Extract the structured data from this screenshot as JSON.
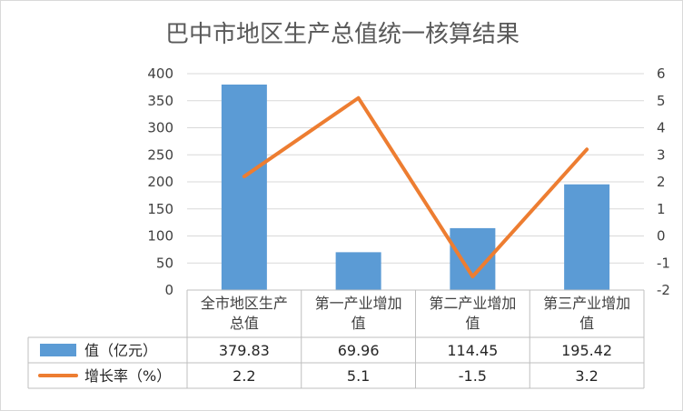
{
  "chart_data": {
    "type": "bar",
    "title": "巴中市地区生产总值统一核算结果",
    "categories": [
      [
        "全市地区生产",
        "总值"
      ],
      [
        "第一产业增加",
        "值"
      ],
      [
        "第二产业增加",
        "值"
      ],
      [
        "第三产业增加",
        "值"
      ]
    ],
    "series": [
      {
        "name": "值（亿元）",
        "type": "bar",
        "axis": "left",
        "color": "#5b9bd5",
        "values": [
          379.83,
          69.96,
          114.45,
          195.42
        ],
        "labels": [
          "379.83",
          "69.96",
          "114.45",
          "195.42"
        ]
      },
      {
        "name": "增长率（%）",
        "type": "line",
        "axis": "right",
        "color": "#ed7d31",
        "values": [
          2.2,
          5.1,
          -1.5,
          3.2
        ],
        "labels": [
          "2.2",
          "5.1",
          "-1.5",
          "3.2"
        ]
      }
    ],
    "y_left": {
      "min": 0,
      "max": 400,
      "step": 50,
      "ticks": [
        "0",
        "50",
        "100",
        "150",
        "200",
        "250",
        "300",
        "350",
        "400"
      ]
    },
    "y_right": {
      "min": -2,
      "max": 6,
      "step": 1,
      "ticks": [
        "-2",
        "-1",
        "0",
        "1",
        "2",
        "3",
        "4",
        "5",
        "6"
      ]
    },
    "grid": true,
    "legend": "data-table"
  }
}
